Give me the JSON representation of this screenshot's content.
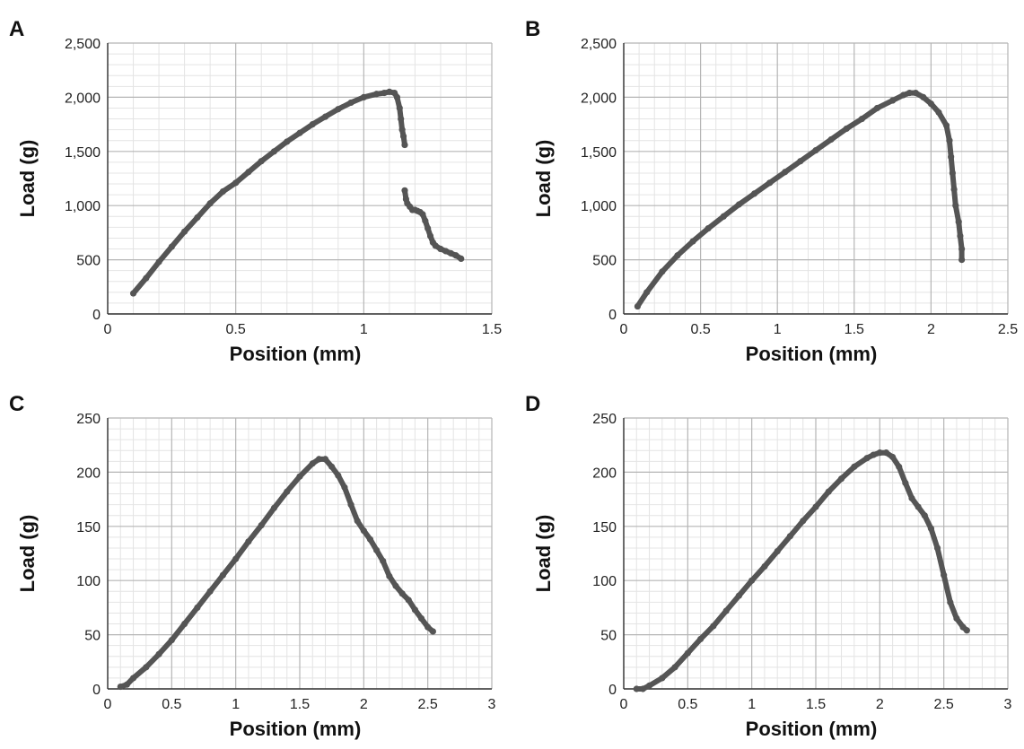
{
  "chart_data": [
    {
      "panel_label": "A",
      "type": "scatter",
      "xlabel": "Position (mm)",
      "ylabel": "Load (g)",
      "xlim": [
        0,
        1.5
      ],
      "ylim": [
        0,
        2500
      ],
      "x_ticks": [
        "0",
        "0.5",
        "1",
        "1.5"
      ],
      "y_ticks": [
        "0",
        "500",
        "1,000",
        "1,500",
        "2,000",
        "2,500"
      ],
      "grid": true,
      "marker_color": "#555555",
      "series": [
        {
          "points": [
            [
              0.1,
              190
            ],
            [
              0.15,
              330
            ],
            [
              0.2,
              480
            ],
            [
              0.25,
              620
            ],
            [
              0.3,
              760
            ],
            [
              0.35,
              890
            ],
            [
              0.4,
              1020
            ],
            [
              0.45,
              1130
            ],
            [
              0.5,
              1210
            ],
            [
              0.55,
              1310
            ],
            [
              0.6,
              1410
            ],
            [
              0.65,
              1500
            ],
            [
              0.7,
              1590
            ],
            [
              0.75,
              1670
            ],
            [
              0.8,
              1750
            ],
            [
              0.85,
              1820
            ],
            [
              0.9,
              1890
            ],
            [
              0.95,
              1950
            ],
            [
              1.0,
              2000
            ],
            [
              1.05,
              2030
            ],
            [
              1.08,
              2040
            ],
            [
              1.1,
              2050
            ],
            [
              1.12,
              2040
            ],
            [
              1.13,
              2000
            ],
            [
              1.14,
              1900
            ],
            [
              1.145,
              1800
            ],
            [
              1.15,
              1700
            ],
            [
              1.155,
              1640
            ],
            [
              1.16,
              1560
            ],
            [
              1.16,
              1140
            ],
            [
              1.165,
              1060
            ],
            [
              1.17,
              1020
            ],
            [
              1.18,
              990
            ],
            [
              1.19,
              960
            ],
            [
              1.2,
              960
            ],
            [
              1.21,
              950
            ],
            [
              1.22,
              940
            ],
            [
              1.23,
              920
            ],
            [
              1.24,
              860
            ],
            [
              1.25,
              790
            ],
            [
              1.26,
              720
            ],
            [
              1.27,
              660
            ],
            [
              1.28,
              630
            ],
            [
              1.3,
              600
            ],
            [
              1.32,
              580
            ],
            [
              1.34,
              560
            ],
            [
              1.36,
              540
            ],
            [
              1.38,
              510
            ]
          ]
        }
      ]
    },
    {
      "panel_label": "B",
      "type": "scatter",
      "xlabel": "Position (mm)",
      "ylabel": "Load (g)",
      "xlim": [
        0,
        2.5
      ],
      "ylim": [
        0,
        2500
      ],
      "x_ticks": [
        "0",
        "0.5",
        "1",
        "1.5",
        "2",
        "2.5"
      ],
      "y_ticks": [
        "0",
        "500",
        "1,000",
        "1,500",
        "2,000",
        "2,500"
      ],
      "grid": true,
      "marker_color": "#555555",
      "series": [
        {
          "points": [
            [
              0.09,
              70
            ],
            [
              0.15,
              200
            ],
            [
              0.25,
              390
            ],
            [
              0.35,
              540
            ],
            [
              0.45,
              670
            ],
            [
              0.55,
              790
            ],
            [
              0.65,
              900
            ],
            [
              0.75,
              1010
            ],
            [
              0.85,
              1110
            ],
            [
              0.95,
              1210
            ],
            [
              1.05,
              1310
            ],
            [
              1.15,
              1410
            ],
            [
              1.25,
              1510
            ],
            [
              1.35,
              1610
            ],
            [
              1.45,
              1710
            ],
            [
              1.55,
              1800
            ],
            [
              1.65,
              1900
            ],
            [
              1.75,
              1970
            ],
            [
              1.82,
              2020
            ],
            [
              1.86,
              2040
            ],
            [
              1.9,
              2040
            ],
            [
              1.95,
              2000
            ],
            [
              2.0,
              1940
            ],
            [
              2.05,
              1860
            ],
            [
              2.1,
              1740
            ],
            [
              2.12,
              1600
            ],
            [
              2.13,
              1450
            ],
            [
              2.14,
              1300
            ],
            [
              2.15,
              1150
            ],
            [
              2.16,
              1000
            ],
            [
              2.18,
              850
            ],
            [
              2.19,
              720
            ],
            [
              2.2,
              600
            ],
            [
              2.2,
              500
            ]
          ]
        }
      ]
    },
    {
      "panel_label": "C",
      "type": "scatter",
      "xlabel": "Position (mm)",
      "ylabel": "Load (g)",
      "xlim": [
        0,
        3
      ],
      "ylim": [
        0,
        250
      ],
      "x_ticks": [
        "0",
        "0.5",
        "1",
        "1.5",
        "2",
        "2.5",
        "3"
      ],
      "y_ticks": [
        "0",
        "50",
        "100",
        "150",
        "200",
        "250"
      ],
      "grid": true,
      "marker_color": "#555555",
      "series": [
        {
          "points": [
            [
              0.1,
              2
            ],
            [
              0.15,
              4
            ],
            [
              0.2,
              10
            ],
            [
              0.3,
              20
            ],
            [
              0.4,
              32
            ],
            [
              0.5,
              45
            ],
            [
              0.6,
              60
            ],
            [
              0.7,
              75
            ],
            [
              0.8,
              90
            ],
            [
              0.9,
              105
            ],
            [
              1.0,
              120
            ],
            [
              1.1,
              136
            ],
            [
              1.2,
              151
            ],
            [
              1.3,
              167
            ],
            [
              1.4,
              182
            ],
            [
              1.5,
              196
            ],
            [
              1.6,
              208
            ],
            [
              1.65,
              212
            ],
            [
              1.7,
              212
            ],
            [
              1.75,
              205
            ],
            [
              1.8,
              197
            ],
            [
              1.85,
              186
            ],
            [
              1.9,
              170
            ],
            [
              1.95,
              155
            ],
            [
              2.0,
              146
            ],
            [
              2.05,
              138
            ],
            [
              2.1,
              128
            ],
            [
              2.15,
              118
            ],
            [
              2.2,
              104
            ],
            [
              2.25,
              95
            ],
            [
              2.3,
              88
            ],
            [
              2.35,
              82
            ],
            [
              2.4,
              73
            ],
            [
              2.45,
              65
            ],
            [
              2.5,
              57
            ],
            [
              2.54,
              53
            ]
          ]
        }
      ]
    },
    {
      "panel_label": "D",
      "type": "scatter",
      "xlabel": "Position (mm)",
      "ylabel": "Load (g)",
      "xlim": [
        0,
        3
      ],
      "ylim": [
        0,
        250
      ],
      "x_ticks": [
        "0",
        "0.5",
        "1",
        "1.5",
        "2",
        "2.5",
        "3"
      ],
      "y_ticks": [
        "0",
        "50",
        "100",
        "150",
        "200",
        "250"
      ],
      "grid": true,
      "marker_color": "#555555",
      "series": [
        {
          "points": [
            [
              0.1,
              0
            ],
            [
              0.15,
              0
            ],
            [
              0.2,
              3
            ],
            [
              0.3,
              10
            ],
            [
              0.4,
              20
            ],
            [
              0.5,
              33
            ],
            [
              0.6,
              46
            ],
            [
              0.7,
              58
            ],
            [
              0.8,
              72
            ],
            [
              0.9,
              86
            ],
            [
              1.0,
              100
            ],
            [
              1.1,
              113
            ],
            [
              1.2,
              127
            ],
            [
              1.3,
              141
            ],
            [
              1.4,
              155
            ],
            [
              1.5,
              168
            ],
            [
              1.6,
              182
            ],
            [
              1.7,
              194
            ],
            [
              1.8,
              205
            ],
            [
              1.9,
              213
            ],
            [
              1.95,
              216
            ],
            [
              2.0,
              218
            ],
            [
              2.05,
              218
            ],
            [
              2.1,
              214
            ],
            [
              2.15,
              205
            ],
            [
              2.2,
              190
            ],
            [
              2.25,
              176
            ],
            [
              2.3,
              168
            ],
            [
              2.35,
              160
            ],
            [
              2.4,
              148
            ],
            [
              2.45,
              130
            ],
            [
              2.5,
              105
            ],
            [
              2.55,
              80
            ],
            [
              2.6,
              65
            ],
            [
              2.65,
              57
            ],
            [
              2.68,
              54
            ]
          ]
        }
      ]
    }
  ]
}
